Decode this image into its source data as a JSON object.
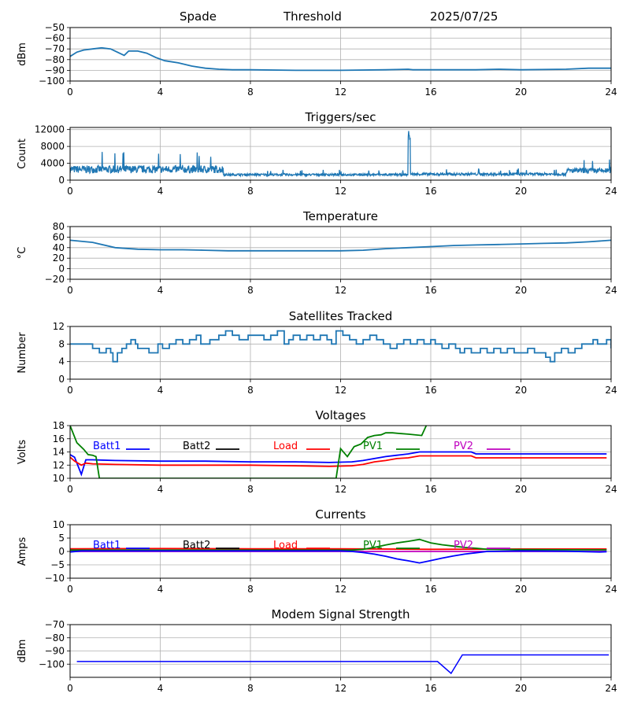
{
  "header": {
    "station": "Spade",
    "mode": "Threshold",
    "date": "2025/07/25"
  },
  "colors": {
    "line": "#1f77b4",
    "blue": "#0000ff",
    "black": "#000000",
    "red": "#ff0000",
    "green": "#008000",
    "magenta": "#bf00bf",
    "grid": "#b0b0b0"
  },
  "chart_data": [
    {
      "id": "signal",
      "type": "line",
      "title": "",
      "ylabel": "dBm",
      "xlim": [
        0,
        24
      ],
      "ylim": [
        -100,
        -50
      ],
      "x_ticks": [
        0,
        4,
        8,
        12,
        16,
        20,
        24
      ],
      "y_ticks": [
        -100,
        -90,
        -80,
        -70,
        -60,
        -50
      ],
      "y_tick_labels": [
        "−100",
        "−90",
        "−80",
        "−70",
        "−60",
        "−50"
      ],
      "series": [
        {
          "color": "line",
          "x": [
            0,
            0.3,
            0.6,
            1.0,
            1.4,
            1.8,
            2.1,
            2.4,
            2.6,
            3.0,
            3.4,
            3.8,
            4.2,
            4.8,
            5.4,
            6.0,
            6.6,
            7.2,
            8,
            10,
            12,
            14,
            15.0,
            15.2,
            16,
            18,
            19,
            20,
            22,
            23,
            24
          ],
          "y": [
            -77,
            -73,
            -71,
            -70,
            -69,
            -70,
            -73,
            -76,
            -72,
            -72,
            -74,
            -78,
            -81,
            -83,
            -86,
            -88,
            -89,
            -89.5,
            -89.5,
            -90,
            -90,
            -89.5,
            -89,
            -89.5,
            -89.5,
            -89.5,
            -89,
            -89.5,
            -89,
            -88,
            -88
          ]
        }
      ]
    },
    {
      "id": "triggers",
      "type": "line",
      "title": "Triggers/sec",
      "ylabel": "Count",
      "xlim": [
        0,
        24
      ],
      "ylim": [
        0,
        12500
      ],
      "x_ticks": [
        0,
        4,
        8,
        12,
        16,
        20,
        24
      ],
      "y_ticks": [
        0,
        4000,
        8000,
        12000
      ],
      "y_tick_labels": [
        "0",
        "4000",
        "8000",
        "12000"
      ],
      "noise": [
        {
          "from": 0,
          "to": 6.8,
          "base": 2200,
          "amp": 1800
        },
        {
          "from": 6.8,
          "to": 15.0,
          "base": 1200,
          "amp": 500
        },
        {
          "from": 15.0,
          "to": 15.1,
          "base": 10000,
          "amp": 2500
        },
        {
          "from": 15.1,
          "to": 22.0,
          "base": 1300,
          "amp": 600
        },
        {
          "from": 22.0,
          "to": 24,
          "base": 2000,
          "amp": 1200
        }
      ],
      "series": [
        {
          "color": "line"
        }
      ]
    },
    {
      "id": "temperature",
      "type": "line",
      "title": "Temperature",
      "ylabel": "°C",
      "xlim": [
        0,
        24
      ],
      "ylim": [
        -20,
        80
      ],
      "x_ticks": [
        0,
        4,
        8,
        12,
        16,
        20,
        24
      ],
      "y_ticks": [
        -20,
        0,
        20,
        40,
        60,
        80
      ],
      "y_tick_labels": [
        "−20",
        "0",
        "20",
        "40",
        "60",
        "80"
      ],
      "series": [
        {
          "color": "line",
          "x": [
            0,
            1,
            2,
            3,
            4,
            5,
            6,
            7,
            8,
            10,
            12,
            13,
            14,
            15,
            16,
            17,
            18,
            19,
            20,
            21,
            22,
            23,
            24
          ],
          "y": [
            54,
            50,
            40,
            37,
            36,
            36,
            35,
            34,
            34,
            34,
            34,
            35,
            38,
            40,
            42,
            44,
            45,
            46,
            47,
            48,
            49,
            51,
            54
          ]
        }
      ]
    },
    {
      "id": "satellites",
      "type": "line",
      "title": "Satellites Tracked",
      "ylabel": "Number",
      "xlim": [
        0,
        24
      ],
      "ylim": [
        0,
        12
      ],
      "x_ticks": [
        0,
        4,
        8,
        12,
        16,
        20,
        24
      ],
      "y_ticks": [
        0,
        4,
        8,
        12
      ],
      "y_tick_labels": [
        "0",
        "4",
        "8",
        "12"
      ],
      "series": [
        {
          "color": "line",
          "x": [
            0,
            0.6,
            1.0,
            1.3,
            1.6,
            1.8,
            1.9,
            2.1,
            2.3,
            2.5,
            2.7,
            2.9,
            3.0,
            3.2,
            3.5,
            3.7,
            3.9,
            4.1,
            4.4,
            4.7,
            5.0,
            5.3,
            5.6,
            5.8,
            6.0,
            6.2,
            6.4,
            6.6,
            6.9,
            7.2,
            7.5,
            7.9,
            8.2,
            8.6,
            8.9,
            9.2,
            9.5,
            9.7,
            9.9,
            10.2,
            10.5,
            10.8,
            11.1,
            11.4,
            11.6,
            11.8,
            12.1,
            12.4,
            12.7,
            13.0,
            13.3,
            13.6,
            13.9,
            14.2,
            14.5,
            14.8,
            15.1,
            15.4,
            15.7,
            16.0,
            16.2,
            16.5,
            16.8,
            17.1,
            17.3,
            17.5,
            17.8,
            18.0,
            18.2,
            18.5,
            18.8,
            19.1,
            19.4,
            19.7,
            20.0,
            20.3,
            20.6,
            20.9,
            21.1,
            21.3,
            21.5,
            21.8,
            22.1,
            22.4,
            22.7,
            23.0,
            23.2,
            23.4,
            23.6,
            23.8,
            24
          ],
          "y": [
            8,
            8,
            7,
            6,
            7,
            6,
            4,
            6,
            7,
            8,
            9,
            8,
            7,
            7,
            6,
            6,
            8,
            7,
            8,
            9,
            8,
            9,
            10,
            8,
            8,
            9,
            9,
            10,
            11,
            10,
            9,
            10,
            10,
            9,
            10,
            11,
            8,
            9,
            10,
            9,
            10,
            9,
            10,
            9,
            8,
            11,
            10,
            9,
            8,
            9,
            10,
            9,
            8,
            7,
            8,
            9,
            8,
            9,
            8,
            9,
            8,
            7,
            8,
            7,
            6,
            7,
            6,
            6,
            7,
            6,
            7,
            6,
            7,
            6,
            6,
            7,
            6,
            6,
            5,
            4,
            6,
            7,
            6,
            7,
            8,
            8,
            9,
            8,
            8,
            9,
            7
          ]
        }
      ]
    },
    {
      "id": "voltages",
      "type": "line",
      "title": "Voltages",
      "ylabel": "Volts",
      "xlim": [
        0,
        24
      ],
      "ylim": [
        10,
        18
      ],
      "x_ticks": [
        0,
        4,
        8,
        12,
        16,
        20,
        24
      ],
      "y_ticks": [
        10,
        12,
        14,
        16,
        18
      ],
      "y_tick_labels": [
        "10",
        "12",
        "14",
        "16",
        "18"
      ],
      "legend": [
        "Batt1",
        "Batt2",
        "Load",
        "PV1",
        "PV2"
      ],
      "legend_colors": [
        "blue",
        "black",
        "red",
        "green",
        "magenta"
      ],
      "series": [
        {
          "name": "Batt1",
          "color": "blue",
          "x": [
            0,
            0.2,
            0.5,
            0.7,
            1.0,
            2,
            4,
            6,
            8,
            10,
            11.5,
            12.5,
            13.0,
            13.5,
            14.0,
            14.5,
            15.0,
            15.5,
            16,
            17,
            17.8,
            18.0,
            20,
            22,
            23.8
          ],
          "y": [
            13.6,
            13.2,
            10.6,
            12.8,
            12.8,
            12.7,
            12.6,
            12.6,
            12.5,
            12.5,
            12.4,
            12.5,
            12.7,
            13.0,
            13.3,
            13.5,
            13.7,
            14.0,
            14.0,
            14.0,
            14.0,
            13.7,
            13.7,
            13.7,
            13.7
          ]
        },
        {
          "name": "Load",
          "color": "red",
          "x": [
            0,
            0.2,
            0.5,
            0.7,
            1.0,
            2,
            4,
            6,
            8,
            10,
            11.5,
            12.5,
            13.0,
            13.5,
            14.0,
            14.5,
            15.0,
            15.5,
            16,
            17,
            17.8,
            18.0,
            20,
            22,
            23.8
          ],
          "y": [
            13.2,
            12.6,
            12.0,
            12.3,
            12.2,
            12.1,
            12.0,
            12.0,
            12.0,
            11.9,
            11.8,
            11.9,
            12.1,
            12.5,
            12.7,
            13.0,
            13.1,
            13.4,
            13.4,
            13.4,
            13.4,
            13.1,
            13.1,
            13.1,
            13.1
          ]
        },
        {
          "name": "PV1",
          "color": "green",
          "x": [
            0,
            0.3,
            0.6,
            0.8,
            1.0,
            1.15,
            1.3,
            11.8,
            12.0,
            12.3,
            12.6,
            12.9,
            13.2,
            13.5,
            13.8,
            14.0,
            14.3,
            14.6,
            15.0,
            15.6,
            15.8
          ],
          "y": [
            18,
            15.4,
            14.4,
            13.6,
            13.5,
            13.3,
            10,
            10,
            14.5,
            13.3,
            14.8,
            15.2,
            16.2,
            16.5,
            16.6,
            16.9,
            16.9,
            16.8,
            16.7,
            16.5,
            18
          ]
        }
      ]
    },
    {
      "id": "currents",
      "type": "line",
      "title": "Currents",
      "ylabel": "Amps",
      "xlim": [
        0,
        24
      ],
      "ylim": [
        -10,
        10
      ],
      "x_ticks": [
        0,
        4,
        8,
        12,
        16,
        20,
        24
      ],
      "y_ticks": [
        -10,
        -5,
        0,
        5,
        10
      ],
      "y_tick_labels": [
        "−10",
        "−5",
        "0",
        "5",
        "10"
      ],
      "legend": [
        "Batt1",
        "Batt2",
        "Load",
        "PV1",
        "PV2"
      ],
      "legend_colors": [
        "blue",
        "black",
        "red",
        "green",
        "magenta"
      ],
      "series": [
        {
          "name": "Load",
          "color": "red",
          "x": [
            0,
            4,
            8,
            12,
            16,
            20,
            23.8
          ],
          "y": [
            1.0,
            1.1,
            1.0,
            1.0,
            0.8,
            0.9,
            0.9
          ]
        },
        {
          "name": "PV2",
          "color": "magenta",
          "x": [
            0,
            4,
            8,
            12,
            16,
            20,
            23.8
          ],
          "y": [
            0,
            0,
            0,
            0,
            0,
            0,
            0
          ]
        },
        {
          "name": "PV1",
          "color": "green",
          "x": [
            0,
            4,
            8,
            12,
            12.5,
            13.0,
            13.5,
            14.0,
            14.5,
            15.0,
            15.5,
            16.0,
            16.5,
            17.0,
            17.5,
            18.0,
            18.5,
            20,
            23.8
          ],
          "y": [
            0.5,
            0.5,
            0.5,
            0.5,
            0.5,
            0.8,
            1.5,
            2.4,
            3.2,
            3.8,
            4.5,
            3.2,
            2.5,
            2.0,
            1.5,
            1.2,
            0.8,
            0.7,
            0.6
          ]
        },
        {
          "name": "Batt1",
          "color": "blue",
          "x": [
            0,
            0.5,
            4,
            8,
            12,
            12.5,
            13.0,
            13.5,
            14.0,
            14.5,
            15.0,
            15.5,
            16.0,
            16.5,
            17.0,
            17.5,
            18.0,
            18.5,
            20,
            22,
            23.5,
            23.8
          ],
          "y": [
            -0.2,
            0.2,
            0.2,
            0.2,
            0.2,
            0,
            -0.4,
            -1.0,
            -1.8,
            -2.8,
            -3.5,
            -4.3,
            -3.4,
            -2.5,
            -1.7,
            -1.0,
            -0.5,
            0,
            0.2,
            0.1,
            -0.2,
            -0.1
          ]
        }
      ]
    },
    {
      "id": "modem",
      "type": "line",
      "title": "Modem Signal Strength",
      "ylabel": "dBm",
      "xlim": [
        0,
        24
      ],
      "ylim": [
        -110,
        -70
      ],
      "x_ticks": [
        0,
        4,
        8,
        12,
        16,
        20,
        24
      ],
      "y_ticks": [
        -100,
        -90,
        -80,
        -70
      ],
      "y_tick_labels": [
        "−100",
        "−90",
        "−80",
        "−70"
      ],
      "series": [
        {
          "color": "blue",
          "x": [
            0.3,
            4,
            8,
            12,
            16.3,
            16.9,
            17.4,
            20,
            23.9
          ],
          "y": [
            -98,
            -98,
            -98,
            -98,
            -98,
            -107,
            -93,
            -93,
            -93
          ]
        }
      ]
    }
  ]
}
